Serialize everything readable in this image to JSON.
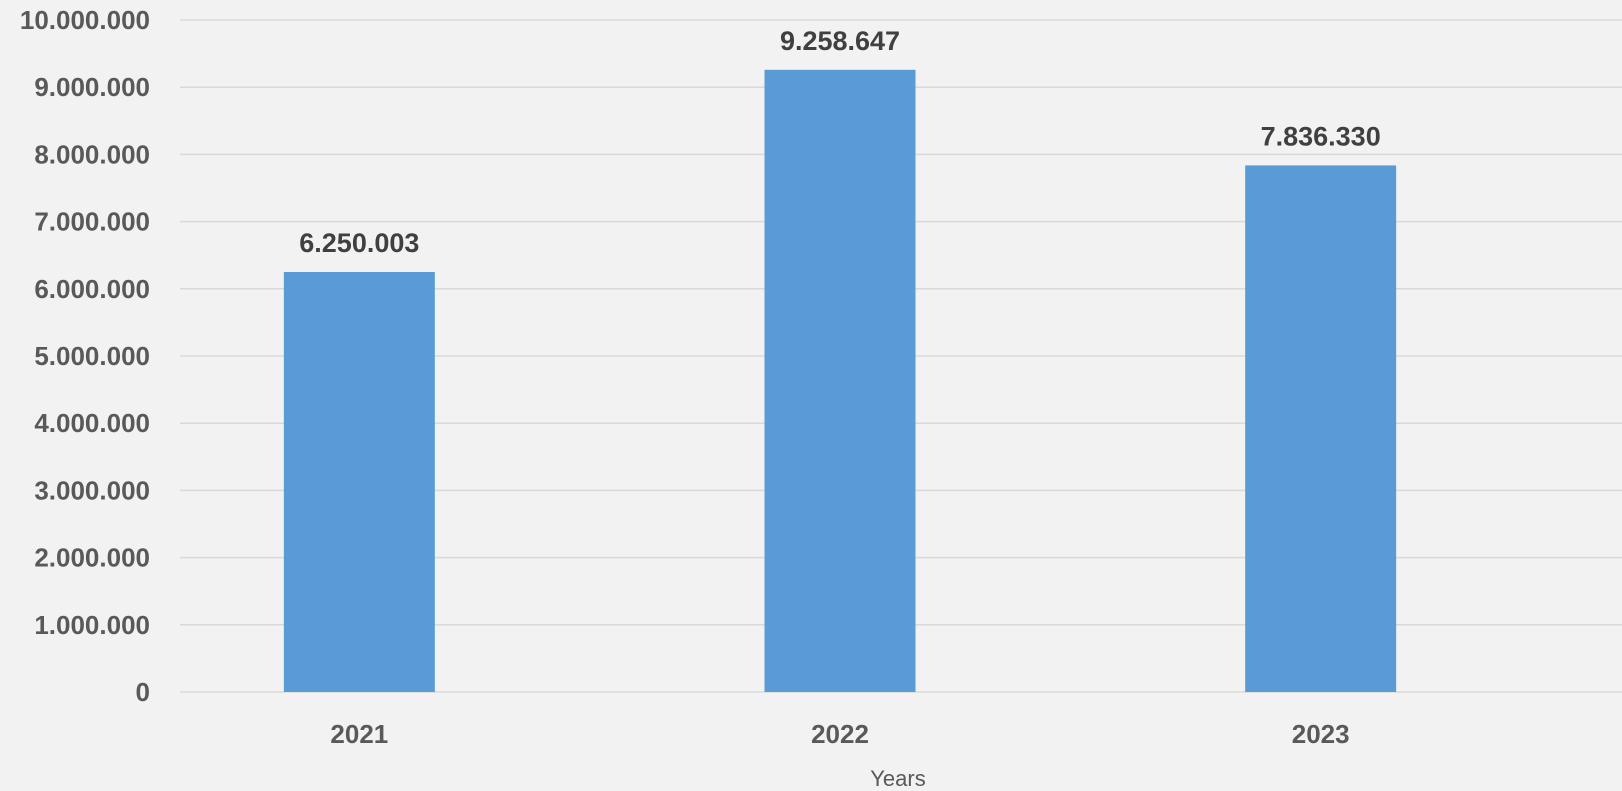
{
  "chart_data": {
    "type": "bar",
    "categories": [
      "2021",
      "2022",
      "2023"
    ],
    "values": [
      6250003,
      9258647,
      7836330
    ],
    "data_labels": [
      "6.250.003",
      "9.258.647",
      "7.836.330"
    ],
    "title": "",
    "xlabel": "Years",
    "ylabel": "",
    "ylim": [
      0,
      10000000
    ],
    "y_ticks": [
      0,
      1000000,
      2000000,
      3000000,
      4000000,
      5000000,
      6000000,
      7000000,
      8000000,
      9000000,
      10000000
    ],
    "y_tick_labels": [
      "0",
      "1.000.000",
      "2.000.000",
      "3.000.000",
      "4.000.000",
      "5.000.000",
      "6.000.000",
      "7.000.000",
      "8.000.000",
      "9.000.000",
      "10.000.000"
    ],
    "grid": true,
    "legend": "none",
    "colors": {
      "bar": "#5b9bd5",
      "grid": "#d9d9d9",
      "background": "#f2f2f2"
    }
  }
}
